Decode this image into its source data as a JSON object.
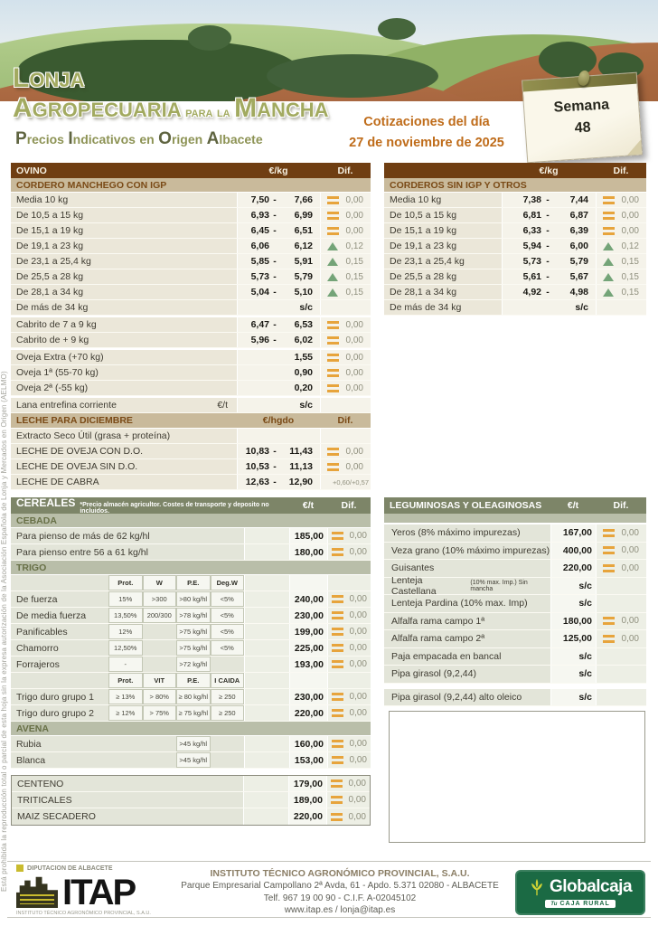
{
  "side_note": "Está prohibida la reproducción total o parcial de esta hoja sin la expresa autorización de la Asociación Española de Lonja y Mercados en Origen (AELMO)",
  "colors": {
    "header_brown": "#6f3e12",
    "subheader_tan": "#c9ba9b",
    "header_olive": "#7d8568",
    "subheader_olive": "#b9bea9",
    "accent_orange": "#e7a43c",
    "accent_green": "#74a478",
    "date_orange": "#bf6c1a",
    "globalcaja_green": "#1b6a44"
  },
  "icons": {
    "no_change": "orange-equals-bars",
    "increase": "green-up-triangle",
    "pushpin": "note-pin"
  },
  "header": {
    "logo_line1": "Lonja",
    "logo_line2": "Agropecuaria para la Mancha",
    "subtitle": "Precios Indicativos en Origen Albacete",
    "date_line1": "Cotizaciones del día",
    "date_line2": "27 de noviembre de 2025",
    "week_label": "Semana",
    "week_number": "48"
  },
  "ovino": {
    "title": "OVINO",
    "unit": "€/kg",
    "dif_label": "Dif.",
    "sections": [
      {
        "subheader": "CORDERO MANCHEGO CON IGP",
        "rows": [
          {
            "label": "Media 10 kg",
            "min": "7,50",
            "sep": "-",
            "max": "7,66",
            "dir": "eq",
            "dif": "0,00"
          },
          {
            "label": "De 10,5 a 15 kg",
            "min": "6,93",
            "sep": "-",
            "max": "6,99",
            "dir": "eq",
            "dif": "0,00"
          },
          {
            "label": "De 15,1 a 19 kg",
            "min": "6,45",
            "sep": "-",
            "max": "6,51",
            "dir": "eq",
            "dif": "0,00"
          },
          {
            "label": "De 19,1 a 23 kg",
            "min": "6,06",
            "sep": "",
            "max": "6,12",
            "dir": "up",
            "dif": "0,12"
          },
          {
            "label": "De 23,1 a 25,4 kg",
            "min": "5,85",
            "sep": "-",
            "max": "5,91",
            "dir": "up",
            "dif": "0,15"
          },
          {
            "label": "De 25,5 a 28 kg",
            "min": "5,73",
            "sep": "-",
            "max": "5,79",
            "dir": "up",
            "dif": "0,15"
          },
          {
            "label": "De 28,1 a 34 kg",
            "min": "5,04",
            "sep": "-",
            "max": "5,10",
            "dir": "up",
            "dif": "0,15"
          },
          {
            "label": "De más de 34 kg",
            "single": "s/c"
          }
        ]
      },
      {
        "rows": [
          {
            "label": "Cabrito de 7 a 9 kg",
            "min": "6,47",
            "sep": "-",
            "max": "6,53",
            "dir": "eq",
            "dif": "0,00"
          },
          {
            "label": "Cabrito de + 9 kg",
            "min": "5,96",
            "sep": "-",
            "max": "6,02",
            "dir": "eq",
            "dif": "0,00"
          }
        ]
      },
      {
        "rows": [
          {
            "label": "Oveja Extra (+70 kg)",
            "single": "1,55",
            "dir": "eq",
            "dif": "0,00"
          },
          {
            "label": "Oveja 1ª (55-70 kg)",
            "single": "0,90",
            "dir": "eq",
            "dif": "0,00"
          },
          {
            "label": "Oveja 2ª (-55 kg)",
            "single": "0,20",
            "dir": "eq",
            "dif": "0,00"
          }
        ]
      },
      {
        "rows": [
          {
            "label": "Lana entrefina corriente",
            "unit_note": "€/t",
            "single": "s/c"
          }
        ]
      }
    ]
  },
  "leche": {
    "title": "LECHE PARA DICIEMBRE",
    "unit": "€/hgdo",
    "dif_label": "Dif.",
    "rows": [
      {
        "label": "Extracto Seco Útil (grasa + proteína)"
      },
      {
        "label": "LECHE DE OVEJA CON D.O.",
        "min": "10,83",
        "sep": "-",
        "max": "11,43",
        "dir": "eq",
        "dif": "0,00"
      },
      {
        "label": "LECHE DE OVEJA SIN D.O.",
        "min": "10,53",
        "sep": "-",
        "max": "11,13",
        "dir": "eq",
        "dif": "0,00"
      },
      {
        "label": "LECHE DE CABRA",
        "min": "12,63",
        "sep": "-",
        "max": "12,90",
        "dif_text": "+0,60/+0,57"
      }
    ]
  },
  "corderos": {
    "title": "CORDEROS SIN IGP Y OTROS",
    "unit": "€/kg",
    "dif_label": "Dif.",
    "rows": [
      {
        "label": "Media 10 kg",
        "min": "7,38",
        "sep": "-",
        "max": "7,44",
        "dir": "eq",
        "dif": "0,00"
      },
      {
        "label": "De 10,5 a 15 kg",
        "min": "6,81",
        "sep": "-",
        "max": "6,87",
        "dir": "eq",
        "dif": "0,00"
      },
      {
        "label": "De 15,1 a 19 kg",
        "min": "6,33",
        "sep": "-",
        "max": "6,39",
        "dir": "eq",
        "dif": "0,00"
      },
      {
        "label": "De 19,1 a 23 kg",
        "min": "5,94",
        "sep": "-",
        "max": "6,00",
        "dir": "up",
        "dif": "0,12"
      },
      {
        "label": "De 23,1 a 25,4 kg",
        "min": "5,73",
        "sep": "-",
        "max": "5,79",
        "dir": "up",
        "dif": "0,15"
      },
      {
        "label": "De 25,5 a 28 kg",
        "min": "5,61",
        "sep": "-",
        "max": "5,67",
        "dir": "up",
        "dif": "0,15"
      },
      {
        "label": "De 28,1 a 34 kg",
        "min": "4,92",
        "sep": "-",
        "max": "4,98",
        "dir": "up",
        "dif": "0,15"
      },
      {
        "label": "De más de 34 kg",
        "single": "s/c"
      }
    ]
  },
  "cereales": {
    "title": "CEREALES",
    "note": "*Precio almacén agricultor. Costes de transporte y deposito no incluidos.",
    "unit": "€/t",
    "dif_label": "Dif.",
    "cebada": {
      "subheader": "CEBADA",
      "rows": [
        {
          "label": "Para pienso de más de 62 kg/hl",
          "price": "185,00",
          "dir": "eq",
          "dif": "0,00"
        },
        {
          "label": "Para pienso entre 56 a 61 kg/hl",
          "price": "180,00",
          "dir": "eq",
          "dif": "0,00"
        }
      ]
    },
    "trigo": {
      "subheader": "TRIGO",
      "spec_header1": [
        "Prot.",
        "W",
        "P.E.",
        "Deg.W"
      ],
      "rows1": [
        {
          "label": "De fuerza",
          "specs": [
            "15%",
            ">300",
            ">80 kg/hl",
            "<5%"
          ],
          "price": "240,00",
          "dir": "eq",
          "dif": "0,00"
        },
        {
          "label": "De media fuerza",
          "specs": [
            "13,50%",
            "200/300",
            ">78 kg/hl",
            "<5%"
          ],
          "price": "230,00",
          "dir": "eq",
          "dif": "0,00"
        },
        {
          "label": "Panificables",
          "specs": [
            "12%",
            "",
            ">75 kg/hl",
            "<5%"
          ],
          "price": "199,00",
          "dir": "eq",
          "dif": "0,00"
        },
        {
          "label": "Chamorro",
          "specs": [
            "12,50%",
            "",
            ">75 kg/hl",
            "<5%"
          ],
          "price": "225,00",
          "dir": "eq",
          "dif": "0,00"
        },
        {
          "label": "Forrajeros",
          "specs": [
            "-",
            "",
            ">72 kg/hl",
            ""
          ],
          "price": "193,00",
          "dir": "eq",
          "dif": "0,00"
        }
      ],
      "spec_header2": [
        "Prot.",
        "VIT",
        "P.E.",
        "I CAIDA"
      ],
      "rows2": [
        {
          "label": "Trigo duro grupo 1",
          "specs": [
            "≥ 13%",
            "> 80%",
            "≥ 80 kg/hl",
            "≥ 250"
          ],
          "price": "230,00",
          "dir": "eq",
          "dif": "0,00"
        },
        {
          "label": "Trigo duro grupo 2",
          "specs": [
            "≥ 12%",
            "> 75%",
            "≥ 75 kg/hl",
            "≥ 250"
          ],
          "price": "220,00",
          "dir": "eq",
          "dif": "0,00"
        }
      ]
    },
    "avena": {
      "subheader": "AVENA",
      "rows": [
        {
          "label": "Rubia",
          "specs": [
            "",
            "",
            ">45 kg/hl",
            ""
          ],
          "price": "160,00",
          "dir": "eq",
          "dif": "0,00"
        },
        {
          "label": "Blanca",
          "specs": [
            "",
            "",
            ">45 kg/hl",
            ""
          ],
          "price": "153,00",
          "dir": "eq",
          "dif": "0,00"
        }
      ]
    },
    "otros": {
      "rows": [
        {
          "label": "CENTENO",
          "price": "179,00",
          "dir": "eq",
          "dif": "0,00"
        },
        {
          "label": "TRITICALES",
          "price": "189,00",
          "dir": "eq",
          "dif": "0,00"
        },
        {
          "label": "MAIZ SECADERO",
          "price": "220,00",
          "dir": "eq",
          "dif": "0,00"
        }
      ]
    }
  },
  "leguminosas": {
    "title": "LEGUMINOSAS Y OLEAGINOSAS",
    "unit": "€/t",
    "dif_label": "Dif.",
    "rows": [
      {
        "label": "Yeros (8% máximo impurezas)",
        "price": "167,00",
        "dir": "eq",
        "dif": "0,00"
      },
      {
        "label": "Veza grano (10% máximo impurezas)",
        "price": "400,00",
        "dir": "eq",
        "dif": "0,00"
      },
      {
        "label": "Guisantes",
        "price": "220,00",
        "dir": "eq",
        "dif": "0,00"
      },
      {
        "label": "Lenteja Castellana",
        "label_small": "(10% max. Imp.) Sin mancha",
        "price": "s/c"
      },
      {
        "label": "Lenteja Pardina (10% max. Imp)",
        "price": "s/c"
      },
      {
        "label": "Alfalfa rama campo 1ª",
        "price": "180,00",
        "dir": "eq",
        "dif": "0,00"
      },
      {
        "label": "Alfalfa rama campo 2ª",
        "price": "125,00",
        "dir": "eq",
        "dif": "0,00"
      },
      {
        "label": "Paja empacada en bancal",
        "price": "s/c"
      },
      {
        "label": "Pipa girasol (9,2,44)",
        "price": "s/c"
      },
      {
        "label": "Pipa girasol (9,2,44) alto oleico",
        "price": "s/c",
        "gap_before": true
      }
    ]
  },
  "footer": {
    "diputacion": "DIPUTACION DE ALBACETE",
    "itap": "ITAP",
    "itap_tagline": "INSTITUTO TÉCNICO AGRONÓMICO PROVINCIAL, S.A.U.",
    "org_name": "INSTITUTO TÉCNICO AGRONÓMICO PROVINCIAL, S.A.U.",
    "address": "Parque Empresarial Campollano 2ª Avda, 61 - Apdo. 5.371   02080 - ALBACETE",
    "phone_cif": "Telf. 967 19 00 90 -  C.I.F. A-02045102",
    "web": "www.itap.es / lonja@itap.es",
    "globalcaja": "Globalcaja",
    "globalcaja_tu": "Tu",
    "globalcaja_sub": "CAJA RURAL"
  }
}
